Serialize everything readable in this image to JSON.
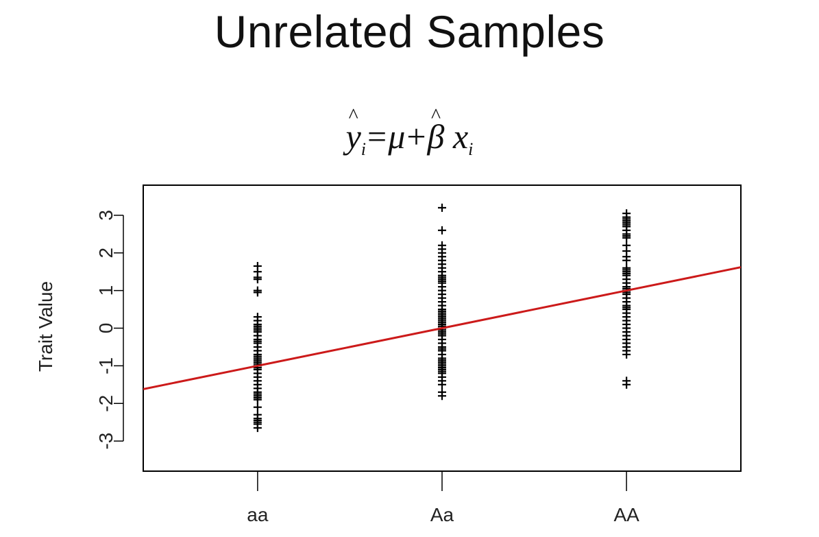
{
  "slide": {
    "title": "Unrelated Samples"
  },
  "equation": {
    "y": "y",
    "sub_i": "i",
    "equals": "=",
    "mu": "μ",
    "plus": "+",
    "beta": "β",
    "x": "x",
    "sub_i2": "i"
  },
  "chart_data": {
    "type": "scatter",
    "title": "",
    "xlabel": "",
    "ylabel": "Trait Value",
    "categories": [
      "aa",
      "Aa",
      "AA"
    ],
    "yticks": [
      -3,
      -2,
      -1,
      0,
      1,
      2,
      3
    ],
    "ylim": [
      -3.8,
      3.8
    ],
    "xlim": [
      -0.62,
      2.62
    ],
    "marker": "+",
    "series": [
      {
        "x": 0,
        "values": [
          1.65,
          1.5,
          1.35,
          1.3,
          1.0,
          0.95,
          0.3,
          0.2,
          0.1,
          0.05,
          0.0,
          -0.05,
          -0.1,
          -0.2,
          -0.3,
          -0.35,
          -0.4,
          -0.5,
          -0.6,
          -0.7,
          -0.75,
          -0.8,
          -0.85,
          -0.9,
          -0.95,
          -1.0,
          -1.05,
          -1.1,
          -1.2,
          -1.3,
          -1.4,
          -1.5,
          -1.6,
          -1.7,
          -1.75,
          -1.8,
          -1.85,
          -1.9,
          -2.1,
          -2.3,
          -2.4,
          -2.45,
          -2.5,
          -2.55,
          -2.65
        ]
      },
      {
        "x": 1,
        "values": [
          3.2,
          2.6,
          2.2,
          2.1,
          2.0,
          1.9,
          1.8,
          1.7,
          1.6,
          1.5,
          1.4,
          1.35,
          1.3,
          1.25,
          1.2,
          1.1,
          1.0,
          0.9,
          0.8,
          0.7,
          0.6,
          0.5,
          0.45,
          0.4,
          0.35,
          0.3,
          0.25,
          0.2,
          0.15,
          0.1,
          0.05,
          0.0,
          -0.05,
          -0.1,
          -0.15,
          -0.2,
          -0.3,
          -0.4,
          -0.5,
          -0.55,
          -0.6,
          -0.7,
          -0.8,
          -0.85,
          -0.9,
          -0.95,
          -1.0,
          -1.05,
          -1.1,
          -1.15,
          -1.2,
          -1.3,
          -1.4,
          -1.5,
          -1.7,
          -1.8
        ]
      },
      {
        "x": 2,
        "values": [
          3.05,
          2.95,
          2.9,
          2.85,
          2.8,
          2.75,
          2.7,
          2.6,
          2.5,
          2.45,
          2.4,
          2.2,
          2.05,
          1.9,
          1.8,
          1.6,
          1.55,
          1.5,
          1.45,
          1.4,
          1.3,
          1.2,
          1.1,
          1.05,
          1.0,
          0.95,
          0.9,
          0.8,
          0.7,
          0.6,
          0.55,
          0.5,
          0.4,
          0.3,
          0.2,
          0.1,
          0.0,
          -0.1,
          -0.2,
          -0.3,
          -0.4,
          -0.5,
          -0.6,
          -0.7,
          -1.4,
          -1.5
        ]
      }
    ],
    "regression_line": {
      "color": "#cc1a1a",
      "intercept": -1.0,
      "slope": 1.0
    },
    "grid": false,
    "legend": "none"
  }
}
